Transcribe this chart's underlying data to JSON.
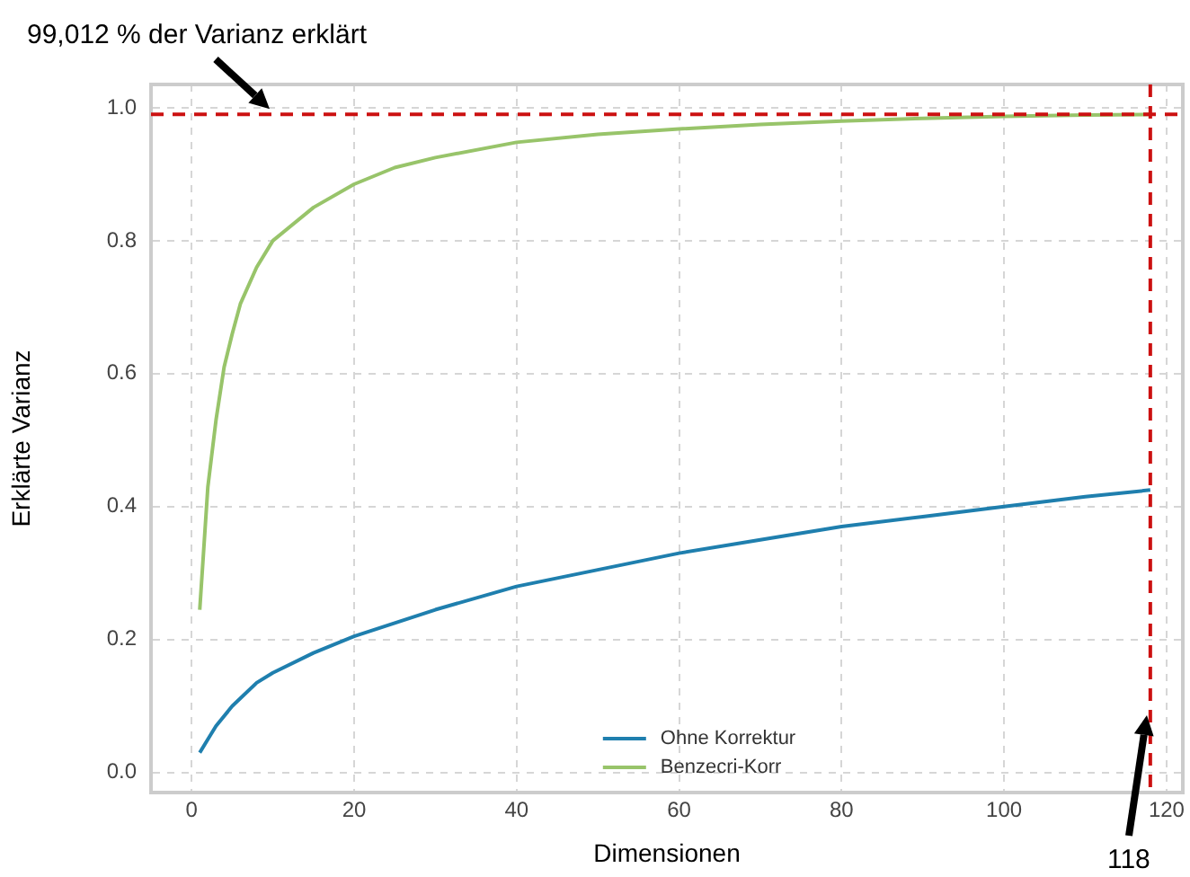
{
  "chart_data": {
    "type": "line",
    "xlabel": "Dimensionen",
    "ylabel": "Erklärte Varianz",
    "xlim": [
      -5,
      122
    ],
    "xticks": [
      0,
      20,
      40,
      60,
      80,
      100,
      120
    ],
    "ylim": [
      -0.03,
      1.035
    ],
    "yticks": [
      {
        "value": 0,
        "label": "0.0"
      },
      {
        "value": 0.2,
        "label": "0.2"
      },
      {
        "value": 0.4,
        "label": "0.4"
      },
      {
        "value": 0.6,
        "label": "0.6"
      },
      {
        "value": 0.8,
        "label": "0.8"
      },
      {
        "value": 1,
        "label": "1.0"
      }
    ],
    "series": [
      {
        "name": "Ohne Korrektur",
        "color": "#1f7fae",
        "x": [
          1,
          2,
          3,
          5,
          8,
          10,
          15,
          20,
          30,
          40,
          50,
          60,
          70,
          80,
          90,
          100,
          110,
          118
        ],
        "values": [
          0.03,
          0.05,
          0.07,
          0.1,
          0.135,
          0.15,
          0.18,
          0.205,
          0.245,
          0.28,
          0.305,
          0.33,
          0.35,
          0.37,
          0.385,
          0.4,
          0.415,
          0.425
        ]
      },
      {
        "name": "Benzecri-Korr",
        "color": "#98c46a",
        "x": [
          1,
          2,
          3,
          4,
          5,
          6,
          8,
          10,
          15,
          20,
          25,
          30,
          40,
          50,
          60,
          70,
          80,
          90,
          100,
          110,
          118
        ],
        "values": [
          0.245,
          0.43,
          0.53,
          0.61,
          0.66,
          0.705,
          0.76,
          0.8,
          0.85,
          0.885,
          0.91,
          0.925,
          0.948,
          0.96,
          0.968,
          0.975,
          0.98,
          0.984,
          0.987,
          0.989,
          0.99
        ]
      }
    ],
    "ref_lines": [
      {
        "axis": "y",
        "value": 0.99012,
        "label": "99,012 % der Varianz erklärt",
        "color": "#cc1111",
        "line_style": "dashed"
      },
      {
        "axis": "x",
        "value": 118,
        "label": "118",
        "color": "#cc1111",
        "line_style": "dashed"
      }
    ],
    "grid": true,
    "legend": "bottom",
    "marker": "none",
    "line_style": "solid"
  }
}
